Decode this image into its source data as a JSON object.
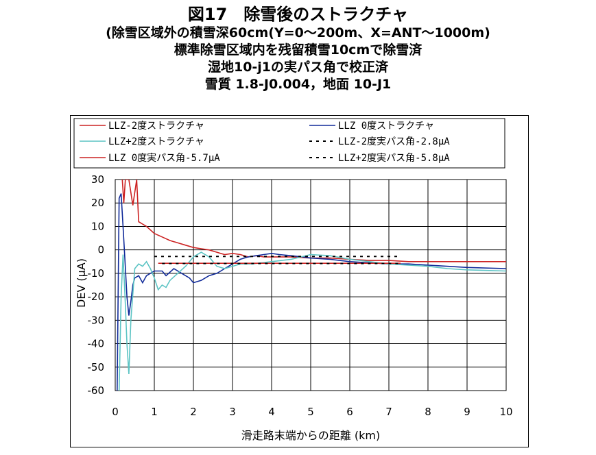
{
  "chart_data": {
    "type": "line",
    "title": "図17　除雪後のストラクチャ",
    "subtitle_lines": [
      "(除雪区域外の積雪深60cm(Y=0～200m、X=ANT～1000m)",
      "標準除雪区域内を残留積雪10cmで除雪済",
      "湿地10-j1の実パス角で校正済",
      "雪質 1.8-J0.004，地面 10-J1"
    ],
    "xlabel": "滑走路末端からの距離 (km)",
    "ylabel": "DEV (μA)",
    "xlim": [
      0,
      10
    ],
    "ylim": [
      -60,
      30
    ],
    "xticks": [
      "0",
      "1",
      "2",
      "3",
      "4",
      "5",
      "6",
      "7",
      "8",
      "9",
      "10"
    ],
    "yticks": [
      "30",
      "20",
      "10",
      "0",
      "-10",
      "-20",
      "-30",
      "-40",
      "-50",
      "-60"
    ],
    "grid": true,
    "legend_position": "top",
    "series": [
      {
        "name": "LLZ-2度ストラクチャ",
        "color": "#cc2222",
        "style": "solid",
        "points": [
          [
            0.18,
            30
          ],
          [
            0.22,
            20
          ],
          [
            0.26,
            30
          ],
          [
            0.35,
            30
          ],
          [
            0.45,
            19
          ],
          [
            0.55,
            30
          ],
          [
            0.6,
            12
          ],
          [
            0.7,
            11
          ],
          [
            0.8,
            10
          ],
          [
            1.0,
            7
          ],
          [
            1.2,
            5.5
          ],
          [
            1.4,
            4
          ],
          [
            1.6,
            3
          ],
          [
            1.8,
            2
          ],
          [
            2.0,
            1
          ],
          [
            2.2,
            0.5
          ],
          [
            2.4,
            0
          ],
          [
            2.6,
            -1
          ],
          [
            2.8,
            -2
          ],
          [
            3.0,
            -1.5
          ],
          [
            3.2,
            -2
          ],
          [
            3.4,
            -3
          ],
          [
            3.6,
            -2.5
          ],
          [
            3.8,
            -3
          ],
          [
            4.0,
            -3
          ],
          [
            4.5,
            -3
          ],
          [
            5.0,
            -3.5
          ],
          [
            5.5,
            -3.5
          ],
          [
            6.0,
            -4
          ],
          [
            6.5,
            -4.5
          ],
          [
            7.0,
            -4.5
          ],
          [
            7.5,
            -5
          ],
          [
            8.0,
            -5
          ],
          [
            9.0,
            -5
          ],
          [
            10.0,
            -5
          ]
        ]
      },
      {
        "name": "LLZ 0度ストラクチャ",
        "color": "#102a99",
        "style": "solid",
        "points": [
          [
            0.05,
            -60
          ],
          [
            0.1,
            22
          ],
          [
            0.15,
            24
          ],
          [
            0.2,
            10
          ],
          [
            0.25,
            -5
          ],
          [
            0.3,
            -20
          ],
          [
            0.35,
            -28
          ],
          [
            0.4,
            -22
          ],
          [
            0.45,
            -15
          ],
          [
            0.5,
            -12
          ],
          [
            0.6,
            -11
          ],
          [
            0.7,
            -14
          ],
          [
            0.8,
            -11
          ],
          [
            0.9,
            -10
          ],
          [
            1.0,
            -9
          ],
          [
            1.2,
            -9
          ],
          [
            1.3,
            -11
          ],
          [
            1.5,
            -8
          ],
          [
            1.7,
            -10
          ],
          [
            1.9,
            -12
          ],
          [
            2.0,
            -14
          ],
          [
            2.2,
            -13
          ],
          [
            2.4,
            -11
          ],
          [
            2.6,
            -10
          ],
          [
            2.8,
            -8
          ],
          [
            3.0,
            -6
          ],
          [
            3.2,
            -4
          ],
          [
            3.4,
            -3
          ],
          [
            3.6,
            -2.5
          ],
          [
            3.8,
            -2
          ],
          [
            4.0,
            -1.5
          ],
          [
            4.2,
            -2
          ],
          [
            4.5,
            -2.5
          ],
          [
            4.8,
            -3
          ],
          [
            5.0,
            -3.5
          ],
          [
            5.5,
            -4
          ],
          [
            6.0,
            -5
          ],
          [
            6.5,
            -5.5
          ],
          [
            7.0,
            -6
          ],
          [
            7.5,
            -6
          ],
          [
            8.0,
            -6.5
          ],
          [
            9.0,
            -7.5
          ],
          [
            10.0,
            -8
          ]
        ]
      },
      {
        "name": "LLZ+2度ストラクチャ",
        "color": "#5cc4c4",
        "style": "solid",
        "points": [
          [
            0.1,
            -60
          ],
          [
            0.15,
            -20
          ],
          [
            0.2,
            -2
          ],
          [
            0.25,
            -20
          ],
          [
            0.3,
            -40
          ],
          [
            0.35,
            -53
          ],
          [
            0.4,
            -30
          ],
          [
            0.5,
            -8
          ],
          [
            0.6,
            -6
          ],
          [
            0.7,
            -7
          ],
          [
            0.8,
            -5
          ],
          [
            0.9,
            -8
          ],
          [
            1.0,
            -12
          ],
          [
            1.1,
            -17
          ],
          [
            1.2,
            -15
          ],
          [
            1.3,
            -16
          ],
          [
            1.4,
            -13
          ],
          [
            1.6,
            -10
          ],
          [
            1.8,
            -7
          ],
          [
            2.0,
            -3
          ],
          [
            2.2,
            -1
          ],
          [
            2.4,
            -3
          ],
          [
            2.6,
            -7
          ],
          [
            2.8,
            -8
          ],
          [
            3.0,
            -7
          ],
          [
            3.2,
            -6
          ],
          [
            3.5,
            -6
          ],
          [
            4.0,
            -5
          ],
          [
            4.5,
            -4
          ],
          [
            5.0,
            -2
          ],
          [
            5.5,
            -2.5
          ],
          [
            6.0,
            -4
          ],
          [
            6.5,
            -5
          ],
          [
            7.0,
            -6
          ],
          [
            7.5,
            -6.5
          ],
          [
            8.0,
            -7
          ],
          [
            8.5,
            -8
          ],
          [
            9.0,
            -8.5
          ],
          [
            10.0,
            -9
          ]
        ]
      },
      {
        "name": "LLZ-2度実パス角-2.8μA",
        "color": "#000000",
        "style": "dashed",
        "points": [
          [
            1.0,
            -2.8
          ],
          [
            7.3,
            -2.8
          ]
        ]
      },
      {
        "name": "LLZ 0度実パス角-5.7μA",
        "color": "#cc2222",
        "style": "solid",
        "points": [
          [
            1.1,
            -5.7
          ],
          [
            7.3,
            -5.7
          ]
        ]
      },
      {
        "name": "LLZ+2度実パス角-5.8μA",
        "color": "#000000",
        "style": "dashed",
        "points": [
          [
            1.2,
            -5.8
          ],
          [
            7.3,
            -5.8
          ]
        ]
      }
    ]
  },
  "legend": {
    "items": [
      {
        "label": "LLZ-2度ストラクチャ",
        "color": "#cc2222",
        "style": "solid"
      },
      {
        "label": "LLZ 0度ストラクチャ",
        "color": "#102a99",
        "style": "solid"
      },
      {
        "label": "LLZ+2度ストラクチャ",
        "color": "#5cc4c4",
        "style": "solid"
      },
      {
        "label": "LLZ-2度実パス角-2.8μA",
        "color": "#000000",
        "style": "dashed"
      },
      {
        "label": "LLZ 0度実パス角-5.7μA",
        "color": "#cc2222",
        "style": "solid"
      },
      {
        "label": "LLZ+2度実パス角-5.8μA",
        "color": "#000000",
        "style": "dashed"
      }
    ]
  }
}
